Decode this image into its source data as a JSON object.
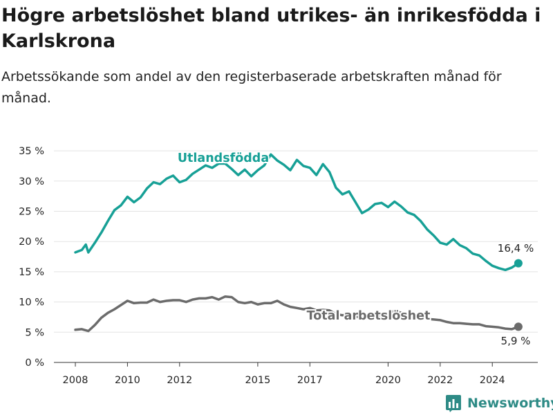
{
  "title": "Högre arbetslöshet bland utrikes- än inrikesfödda i Karlskrona",
  "subtitle": "Arbetssökande som andel av den registerbaserade arbetskraften månad för månad.",
  "brand": {
    "name": "Newsworthy",
    "icon": "bar-chart-logo-icon",
    "color": "#2e8b86"
  },
  "chart_data": {
    "type": "line",
    "title": "Högre arbetslöshet bland utrikes- än inrikesfödda i Karlskrona",
    "subtitle": "Arbetssökande som andel av den registerbaserade arbetskraften månad för månad.",
    "xlabel": "",
    "ylabel": "",
    "xlim": [
      2007.5,
      2025.9
    ],
    "ylim": [
      0,
      35
    ],
    "y_ticks": [
      "0 %",
      "5 %",
      "10 %",
      "15 %",
      "20 %",
      "25 %",
      "30 %",
      "35 %"
    ],
    "y_tick_values": [
      0,
      5,
      10,
      15,
      20,
      25,
      30,
      35
    ],
    "x_ticks": [
      "2008",
      "2010",
      "2012",
      "2015",
      "2017",
      "2020",
      "2022",
      "2024"
    ],
    "x_tick_values": [
      2008,
      2010,
      2012,
      2015,
      2017,
      2020,
      2022,
      2024
    ],
    "grid": "horizontal",
    "series": [
      {
        "name": "Utlandsfödda",
        "color": "#17a096",
        "end_label": "16,4 %",
        "x": [
          2008.0,
          2008.25,
          2008.4,
          2008.5,
          2008.75,
          2009.0,
          2009.25,
          2009.5,
          2009.75,
          2010.0,
          2010.25,
          2010.5,
          2010.75,
          2011.0,
          2011.25,
          2011.5,
          2011.75,
          2012.0,
          2012.25,
          2012.5,
          2012.75,
          2013.0,
          2013.25,
          2013.5,
          2013.75,
          2014.0,
          2014.25,
          2014.5,
          2014.75,
          2015.0,
          2015.25,
          2015.5,
          2015.75,
          2016.0,
          2016.25,
          2016.5,
          2016.75,
          2017.0,
          2017.25,
          2017.5,
          2017.75,
          2018.0,
          2018.25,
          2018.5,
          2018.75,
          2019.0,
          2019.25,
          2019.5,
          2019.75,
          2020.0,
          2020.25,
          2020.5,
          2020.75,
          2021.0,
          2021.25,
          2021.5,
          2021.75,
          2022.0,
          2022.25,
          2022.5,
          2022.75,
          2023.0,
          2023.25,
          2023.5,
          2023.75,
          2024.0,
          2024.25,
          2024.5,
          2024.75,
          2025.0
        ],
        "values": [
          18.2,
          18.6,
          19.5,
          18.2,
          19.8,
          21.5,
          23.4,
          25.2,
          26.0,
          27.4,
          26.5,
          27.3,
          28.8,
          29.8,
          29.5,
          30.4,
          30.9,
          29.8,
          30.2,
          31.2,
          31.9,
          32.6,
          32.2,
          32.9,
          32.9,
          32.0,
          31.0,
          31.9,
          30.8,
          31.8,
          32.6,
          34.4,
          33.4,
          32.7,
          31.8,
          33.5,
          32.5,
          32.2,
          31.0,
          32.8,
          31.5,
          28.9,
          27.8,
          28.3,
          26.5,
          24.7,
          25.3,
          26.2,
          26.4,
          25.7,
          26.6,
          25.8,
          24.8,
          24.4,
          23.4,
          22.0,
          21.0,
          19.8,
          19.5,
          20.4,
          19.4,
          18.9,
          18.0,
          17.7,
          16.8,
          16.0,
          15.6,
          15.3,
          15.7,
          16.4
        ]
      },
      {
        "name": "Total arbetslöshet",
        "color": "#6b6b6b",
        "end_label": "5,9 %",
        "x": [
          2008.0,
          2008.25,
          2008.5,
          2008.75,
          2009.0,
          2009.25,
          2009.5,
          2009.75,
          2010.0,
          2010.25,
          2010.5,
          2010.75,
          2011.0,
          2011.25,
          2011.5,
          2011.75,
          2012.0,
          2012.25,
          2012.5,
          2012.75,
          2013.0,
          2013.25,
          2013.5,
          2013.75,
          2014.0,
          2014.25,
          2014.5,
          2014.75,
          2015.0,
          2015.25,
          2015.5,
          2015.75,
          2016.0,
          2016.25,
          2016.5,
          2016.75,
          2017.0,
          2017.25,
          2017.5,
          2017.75,
          2018.0,
          2018.25,
          2018.5,
          2018.75,
          2019.0,
          2019.25,
          2019.5,
          2019.75,
          2020.0,
          2020.25,
          2020.5,
          2020.75,
          2021.0,
          2021.25,
          2021.5,
          2021.75,
          2022.0,
          2022.25,
          2022.5,
          2022.75,
          2023.0,
          2023.25,
          2023.5,
          2023.75,
          2024.0,
          2024.25,
          2024.5,
          2024.75,
          2025.0
        ],
        "values": [
          5.4,
          5.5,
          5.2,
          6.2,
          7.4,
          8.2,
          8.8,
          9.5,
          10.2,
          9.8,
          9.9,
          9.9,
          10.4,
          10.0,
          10.2,
          10.3,
          10.3,
          10.0,
          10.4,
          10.6,
          10.6,
          10.8,
          10.4,
          10.9,
          10.8,
          10.0,
          9.8,
          10.0,
          9.6,
          9.8,
          9.8,
          10.2,
          9.6,
          9.2,
          9.0,
          8.8,
          9.0,
          8.6,
          8.7,
          8.6,
          8.0,
          7.8,
          7.9,
          7.6,
          7.4,
          7.5,
          7.6,
          7.8,
          7.9,
          8.6,
          8.2,
          8.1,
          7.8,
          7.5,
          7.2,
          7.1,
          7.0,
          6.7,
          6.5,
          6.5,
          6.4,
          6.3,
          6.3,
          6.0,
          5.9,
          5.8,
          5.6,
          5.5,
          5.9
        ]
      }
    ]
  }
}
